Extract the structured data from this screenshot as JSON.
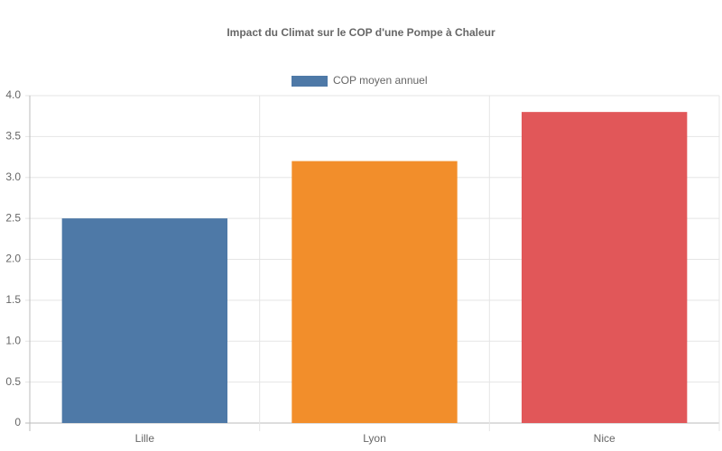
{
  "chart_data": {
    "type": "bar",
    "title": "Impact du Climat sur le COP d'une Pompe à Chaleur",
    "categories": [
      "Lille",
      "Lyon",
      "Nice"
    ],
    "series": [
      {
        "name": "COP moyen annuel",
        "color": "#4e79a7",
        "colors": [
          "#4e79a7",
          "#f28e2b",
          "#e15759"
        ],
        "values": [
          2.5,
          3.2,
          3.8
        ]
      }
    ],
    "ylim": [
      0,
      4
    ],
    "yticks": [
      0,
      0.5,
      {
        "value": 1,
        "label": "1.0"
      },
      1.5,
      {
        "value": 2,
        "label": "2.0"
      },
      2.5,
      {
        "value": 3,
        "label": "3.0"
      },
      3.5,
      {
        "value": 4,
        "label": "4.0"
      }
    ],
    "grid": true,
    "legend": "top"
  }
}
